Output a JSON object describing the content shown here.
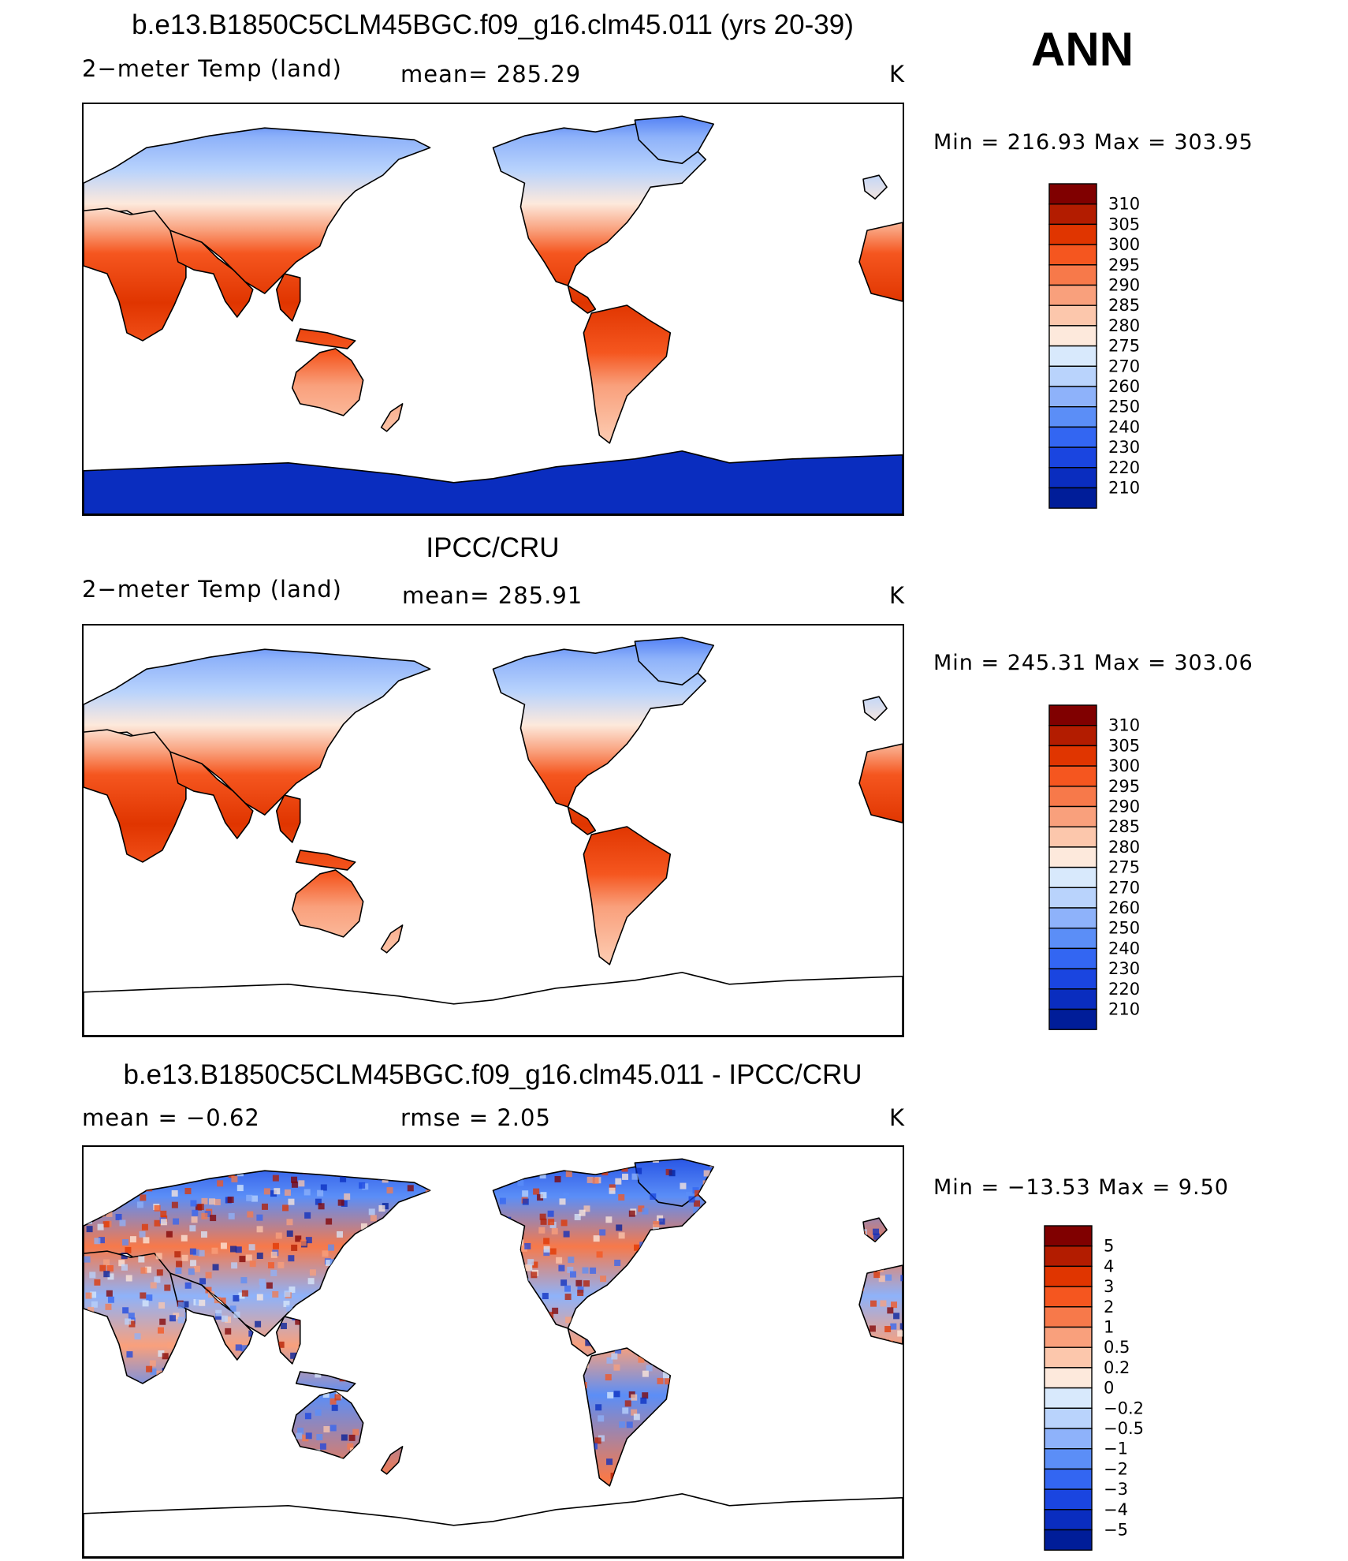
{
  "season": "ANN",
  "panels": [
    {
      "id": "model",
      "title": "b.e13.B1850C5CLM45BGC.f09_g16.clm45.011 (yrs 20-39)",
      "left_label": "2−meter Temp (land)",
      "center_label": "mean=  285.29",
      "units": "K",
      "minmax": "Min  =  216.93  Max  =  303.95",
      "antarctica_filled": true,
      "field": "absolute",
      "colorbar": {
        "labels": [
          "310",
          "305",
          "300",
          "295",
          "290",
          "285",
          "280",
          "275",
          "270",
          "260",
          "250",
          "240",
          "230",
          "220",
          "210"
        ],
        "colors": [
          "#800000",
          "#b31c00",
          "#e03500",
          "#f5561f",
          "#f7794a",
          "#f9a07c",
          "#fcc7ac",
          "#fde9dc",
          "#d8e9fc",
          "#b9d3fc",
          "#8eb2fa",
          "#5b8ef7",
          "#3366f2",
          "#1a45e0",
          "#0a2dbf",
          "#001d99"
        ]
      }
    },
    {
      "id": "obs",
      "title": "IPCC/CRU",
      "left_label": "2−meter Temp (land)",
      "center_label": "mean=  285.91",
      "units": "K",
      "minmax": "Min  =  245.31  Max  =  303.06",
      "antarctica_filled": false,
      "field": "absolute",
      "colorbar": {
        "labels": [
          "310",
          "305",
          "300",
          "295",
          "290",
          "285",
          "280",
          "275",
          "270",
          "260",
          "250",
          "240",
          "230",
          "220",
          "210"
        ],
        "colors": [
          "#800000",
          "#b31c00",
          "#e03500",
          "#f5561f",
          "#f7794a",
          "#f9a07c",
          "#fcc7ac",
          "#fde9dc",
          "#d8e9fc",
          "#b9d3fc",
          "#8eb2fa",
          "#5b8ef7",
          "#3366f2",
          "#1a45e0",
          "#0a2dbf",
          "#001d99"
        ]
      }
    },
    {
      "id": "diff",
      "title": "b.e13.B1850C5CLM45BGC.f09_g16.clm45.011 - IPCC/CRU",
      "left_label": "mean  =     −0.62",
      "center_label": "rmse  =      2.05",
      "units": "K",
      "minmax": "Min  =  −13.53  Max  =       9.50",
      "antarctica_filled": false,
      "field": "difference",
      "colorbar": {
        "labels": [
          "5",
          "4",
          "3",
          "2",
          "1",
          "0.5",
          "0.2",
          "0",
          "−0.2",
          "−0.5",
          "−1",
          "−2",
          "−3",
          "−4",
          "−5"
        ],
        "colors": [
          "#800000",
          "#b31c00",
          "#e03500",
          "#f5561f",
          "#f7794a",
          "#f9a07c",
          "#fcc7ac",
          "#fde9dc",
          "#d8e9fc",
          "#b9d3fc",
          "#8eb2fa",
          "#5b8ef7",
          "#3366f2",
          "#1a45e0",
          "#0a2dbf",
          "#001d99"
        ]
      }
    }
  ]
}
